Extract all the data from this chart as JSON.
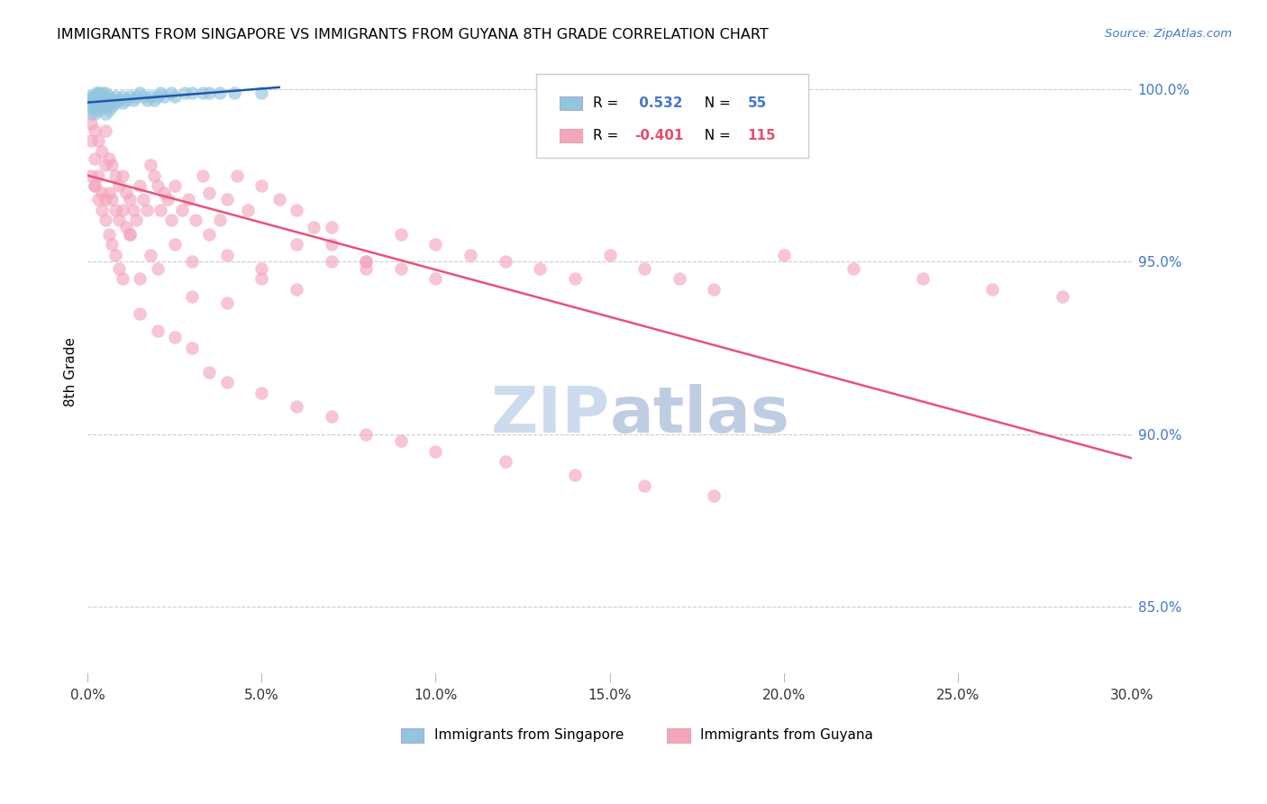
{
  "title": "IMMIGRANTS FROM SINGAPORE VS IMMIGRANTS FROM GUYANA 8TH GRADE CORRELATION CHART",
  "source_text": "Source: ZipAtlas.com",
  "ylabel": "8th Grade",
  "xlim": [
    0.0,
    0.3
  ],
  "ylim": [
    0.828,
    1.008
  ],
  "xtick_labels": [
    "0.0%",
    "5.0%",
    "10.0%",
    "15.0%",
    "20.0%",
    "25.0%",
    "30.0%"
  ],
  "xtick_vals": [
    0.0,
    0.05,
    0.1,
    0.15,
    0.2,
    0.25,
    0.3
  ],
  "ytick_labels": [
    "85.0%",
    "90.0%",
    "95.0%",
    "100.0%"
  ],
  "ytick_vals": [
    0.85,
    0.9,
    0.95,
    1.0
  ],
  "blue_color": "#92c5de",
  "pink_color": "#f4a6bd",
  "blue_line_color": "#2255aa",
  "pink_line_color": "#e8527a",
  "watermark_zip_color": "#c8d8ee",
  "watermark_atlas_color": "#b8c8e0",
  "singapore_x": [
    0.0005,
    0.001,
    0.001,
    0.001,
    0.0015,
    0.0015,
    0.002,
    0.002,
    0.002,
    0.0025,
    0.0025,
    0.003,
    0.003,
    0.003,
    0.003,
    0.0035,
    0.004,
    0.004,
    0.004,
    0.0045,
    0.005,
    0.005,
    0.005,
    0.005,
    0.006,
    0.006,
    0.006,
    0.007,
    0.007,
    0.008,
    0.008,
    0.009,
    0.01,
    0.01,
    0.011,
    0.012,
    0.013,
    0.014,
    0.015,
    0.016,
    0.017,
    0.018,
    0.019,
    0.02,
    0.021,
    0.022,
    0.024,
    0.025,
    0.028,
    0.03,
    0.033,
    0.035,
    0.038,
    0.042,
    0.05
  ],
  "singapore_y": [
    0.998,
    0.997,
    0.995,
    0.993,
    0.998,
    0.996,
    0.997,
    0.995,
    0.993,
    0.999,
    0.996,
    0.999,
    0.998,
    0.996,
    0.994,
    0.997,
    0.999,
    0.997,
    0.995,
    0.998,
    0.999,
    0.997,
    0.995,
    0.993,
    0.998,
    0.996,
    0.994,
    0.997,
    0.995,
    0.998,
    0.996,
    0.997,
    0.998,
    0.996,
    0.997,
    0.998,
    0.997,
    0.998,
    0.999,
    0.998,
    0.997,
    0.998,
    0.997,
    0.998,
    0.999,
    0.998,
    0.999,
    0.998,
    0.999,
    0.999,
    0.999,
    0.999,
    0.999,
    0.999,
    0.999
  ],
  "guyana_x": [
    0.001,
    0.001,
    0.001,
    0.002,
    0.002,
    0.002,
    0.003,
    0.003,
    0.004,
    0.004,
    0.005,
    0.005,
    0.005,
    0.006,
    0.006,
    0.007,
    0.007,
    0.008,
    0.008,
    0.009,
    0.009,
    0.01,
    0.01,
    0.011,
    0.011,
    0.012,
    0.012,
    0.013,
    0.014,
    0.015,
    0.016,
    0.017,
    0.018,
    0.019,
    0.02,
    0.021,
    0.022,
    0.023,
    0.024,
    0.025,
    0.027,
    0.029,
    0.031,
    0.033,
    0.035,
    0.038,
    0.04,
    0.043,
    0.046,
    0.05,
    0.055,
    0.06,
    0.065,
    0.07,
    0.08,
    0.09,
    0.1,
    0.11,
    0.12,
    0.13,
    0.14,
    0.15,
    0.16,
    0.17,
    0.18,
    0.2,
    0.22,
    0.24,
    0.26,
    0.28,
    0.002,
    0.003,
    0.004,
    0.005,
    0.006,
    0.007,
    0.008,
    0.009,
    0.01,
    0.012,
    0.015,
    0.018,
    0.02,
    0.025,
    0.03,
    0.035,
    0.04,
    0.05,
    0.06,
    0.07,
    0.08,
    0.09,
    0.1,
    0.03,
    0.04,
    0.05,
    0.06,
    0.07,
    0.08,
    0.015,
    0.02,
    0.025,
    0.03,
    0.035,
    0.04,
    0.05,
    0.06,
    0.07,
    0.08,
    0.09,
    0.1,
    0.12,
    0.14,
    0.16,
    0.18
  ],
  "guyana_y": [
    0.99,
    0.985,
    0.975,
    0.988,
    0.98,
    0.972,
    0.985,
    0.975,
    0.982,
    0.97,
    0.988,
    0.978,
    0.968,
    0.98,
    0.97,
    0.978,
    0.968,
    0.975,
    0.965,
    0.972,
    0.962,
    0.975,
    0.965,
    0.97,
    0.96,
    0.968,
    0.958,
    0.965,
    0.962,
    0.972,
    0.968,
    0.965,
    0.978,
    0.975,
    0.972,
    0.965,
    0.97,
    0.968,
    0.962,
    0.972,
    0.965,
    0.968,
    0.962,
    0.975,
    0.97,
    0.962,
    0.968,
    0.975,
    0.965,
    0.972,
    0.968,
    0.965,
    0.96,
    0.955,
    0.95,
    0.958,
    0.955,
    0.952,
    0.95,
    0.948,
    0.945,
    0.952,
    0.948,
    0.945,
    0.942,
    0.952,
    0.948,
    0.945,
    0.942,
    0.94,
    0.972,
    0.968,
    0.965,
    0.962,
    0.958,
    0.955,
    0.952,
    0.948,
    0.945,
    0.958,
    0.945,
    0.952,
    0.948,
    0.955,
    0.95,
    0.958,
    0.952,
    0.948,
    0.955,
    0.96,
    0.95,
    0.948,
    0.945,
    0.94,
    0.938,
    0.945,
    0.942,
    0.95,
    0.948,
    0.935,
    0.93,
    0.928,
    0.925,
    0.918,
    0.915,
    0.912,
    0.908,
    0.905,
    0.9,
    0.898,
    0.895,
    0.892,
    0.888,
    0.885,
    0.882
  ]
}
